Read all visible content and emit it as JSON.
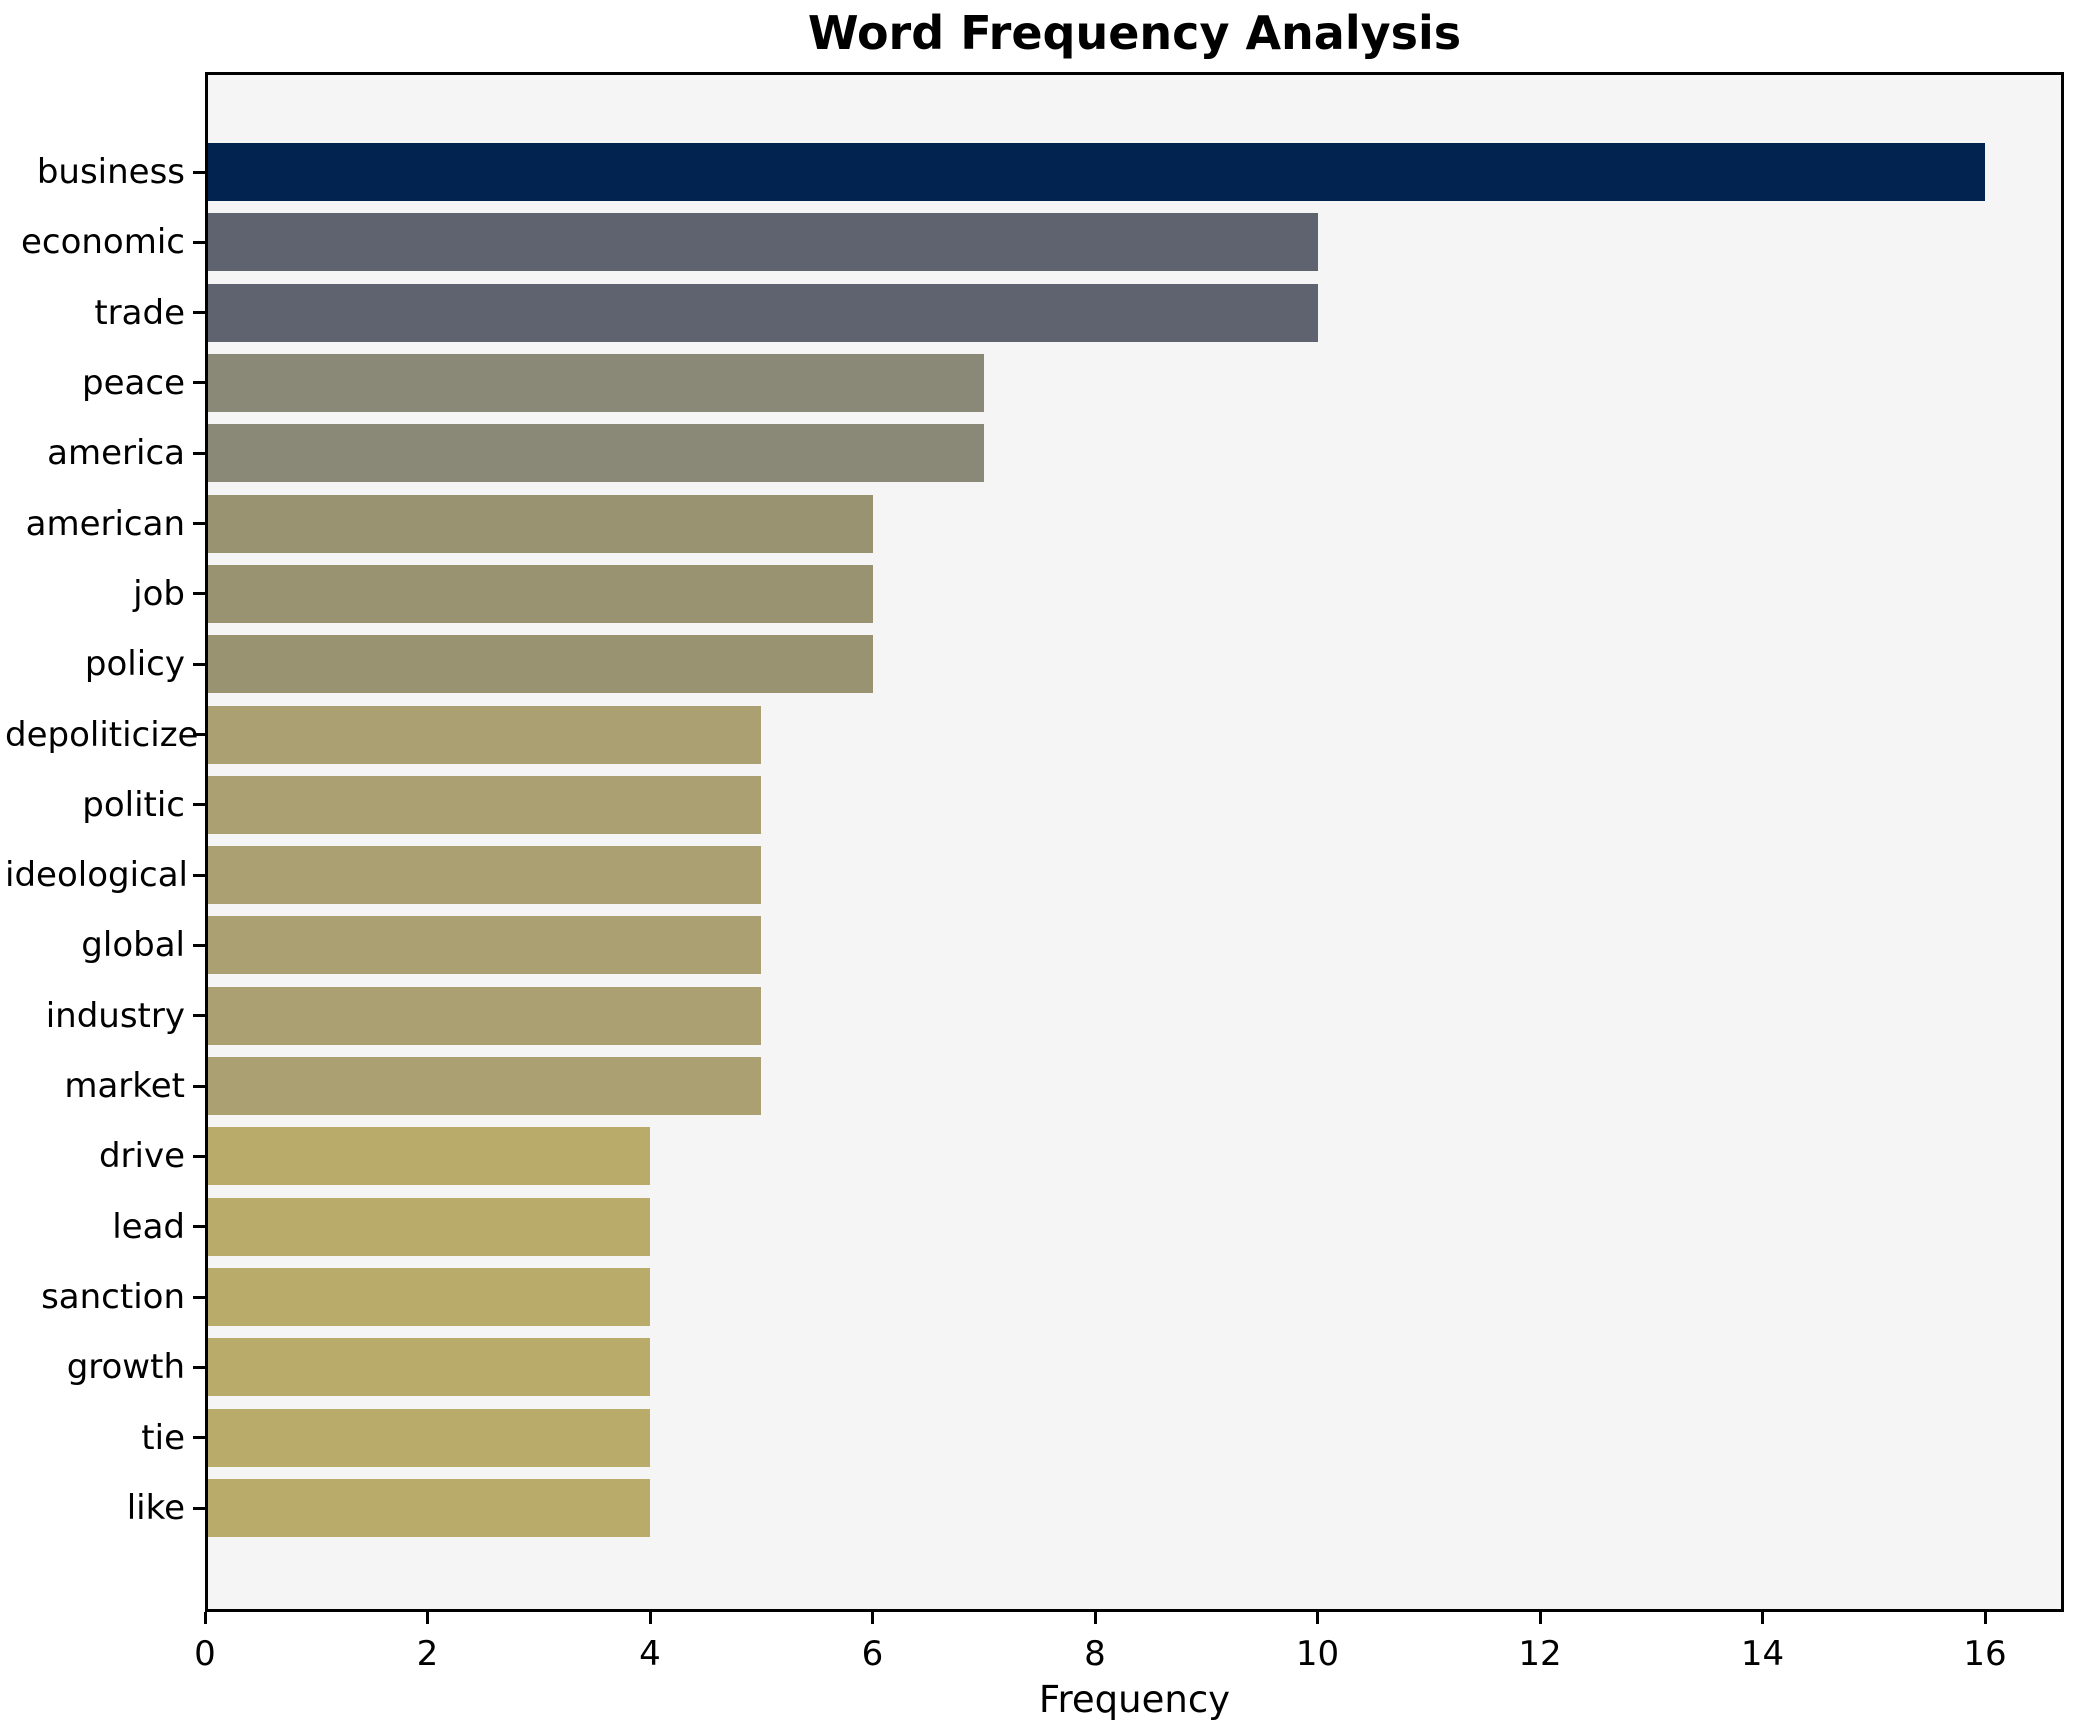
{
  "chart_data": {
    "type": "bar",
    "orientation": "horizontal",
    "title": "Word Frequency Analysis",
    "xlabel": "Frequency",
    "ylabel": "",
    "categories": [
      "business",
      "economic",
      "trade",
      "peace",
      "america",
      "american",
      "job",
      "policy",
      "depoliticize",
      "politic",
      "ideological",
      "global",
      "industry",
      "market",
      "drive",
      "lead",
      "sanction",
      "growth",
      "tie",
      "like"
    ],
    "values": [
      16,
      10,
      10,
      7,
      7,
      6,
      6,
      6,
      5,
      5,
      5,
      5,
      5,
      5,
      4,
      4,
      4,
      4,
      4,
      4
    ],
    "bar_colors": [
      "#02234f",
      "#5f6370",
      "#5f6370",
      "#8a8876",
      "#8a8876",
      "#9a9372",
      "#9a9372",
      "#9a9372",
      "#aaa072",
      "#aaa072",
      "#aaa072",
      "#aaa072",
      "#aaa072",
      "#aaa072",
      "#b9ac6a",
      "#b9ac6a",
      "#b9ac6a",
      "#b9ac6a",
      "#b9ac6a",
      "#b9ac6a"
    ],
    "xlim": [
      0,
      16.71
    ],
    "x_ticks": [
      0,
      2,
      4,
      6,
      8,
      10,
      12,
      14,
      16
    ],
    "grid": false,
    "legend": null,
    "plot_bg": "#f5f5f6",
    "figure_bg": "#ffffff",
    "spine_color": "#000000",
    "bar_color_navy": "#02234f",
    "bar_color_gray": "#5f6370",
    "bar_color_grayolive": "#8a8876",
    "bar_color_olive": "#9a9372",
    "bar_color_khaki": "#aaa072",
    "bar_color_tan": "#b9ac6a"
  }
}
